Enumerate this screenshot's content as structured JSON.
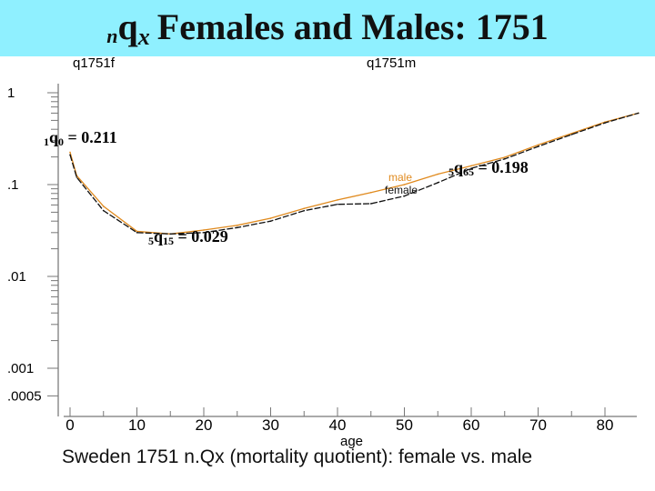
{
  "title": {
    "prefix": "n",
    "main": "q",
    "subscript": "x",
    "rest": "Females and Males:  1751"
  },
  "chart_data": {
    "type": "line",
    "caption": "Sweden 1751 n.Qx (mortality quotient): female vs. male",
    "xlabel": "age",
    "ylabel": "",
    "left_panel_label": "q1751f",
    "right_panel_label": "q1751m",
    "x_ticks": [
      0,
      10,
      20,
      30,
      40,
      50,
      60,
      70,
      80
    ],
    "y_ticks": [
      1,
      0.1,
      0.01,
      0.001,
      0.0005
    ],
    "y_tick_labels": [
      "1",
      ".1",
      ".01",
      ".001",
      ".0005"
    ],
    "xlim": [
      0,
      85
    ],
    "y_scale": "log",
    "ylim": [
      0.0004,
      1
    ],
    "series": [
      {
        "name": "male",
        "color": "#e08a1e",
        "x": [
          0,
          1,
          5,
          10,
          15,
          20,
          25,
          30,
          35,
          40,
          45,
          50,
          55,
          60,
          65,
          70,
          75,
          80,
          85
        ],
        "y": [
          0.225,
          0.125,
          0.058,
          0.031,
          0.029,
          0.032,
          0.036,
          0.043,
          0.055,
          0.068,
          0.082,
          0.1,
          0.13,
          0.16,
          0.198,
          0.27,
          0.36,
          0.48,
          0.6
        ]
      },
      {
        "name": "female",
        "color": "#111111",
        "x": [
          0,
          1,
          5,
          10,
          15,
          20,
          25,
          30,
          35,
          40,
          45,
          50,
          55,
          60,
          65,
          70,
          75,
          80,
          85
        ],
        "y": [
          0.211,
          0.12,
          0.052,
          0.03,
          0.029,
          0.03,
          0.034,
          0.04,
          0.052,
          0.061,
          0.062,
          0.075,
          0.105,
          0.15,
          0.19,
          0.26,
          0.35,
          0.47,
          0.6
        ]
      }
    ],
    "annotations": [
      {
        "prefix": "1",
        "q": "q",
        "sub": "0",
        "text": " = 0.211",
        "x": 0,
        "y": 0.211
      },
      {
        "prefix": "5",
        "q": "q",
        "sub": "15",
        "text": " = 0.029",
        "x": 15,
        "y": 0.029
      },
      {
        "prefix": "5",
        "q": "q",
        "sub": "65",
        "text": " = 0.198",
        "x": 65,
        "y": 0.198
      }
    ],
    "legend": {
      "placement": "inline-center",
      "entries": [
        "male",
        "female"
      ]
    },
    "grid": false
  }
}
